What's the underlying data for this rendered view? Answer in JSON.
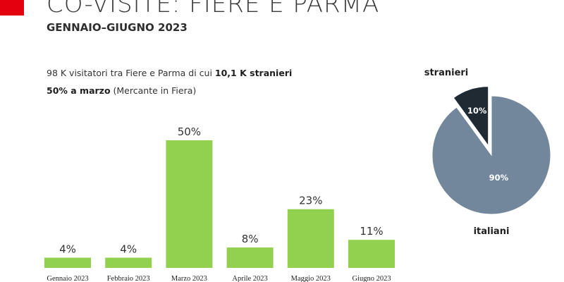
{
  "header": {
    "title": "CO-VISITE: FIERE E PARMA",
    "subtitle": "GENNAIO–GIUGNO 2023"
  },
  "info": {
    "line1_text": "98 K visitatori tra Fiere e Parma di cui ",
    "line1_bold": "10,1 K stranieri",
    "line2_bold": "50% a marzo",
    "line2_text": " (Mercante in Fiera)"
  },
  "colors": {
    "accent": "#e3000f",
    "bar": "#92d050",
    "pie_italiani": "#72879c",
    "pie_stranieri": "#1f2a33"
  },
  "chart_data": [
    {
      "type": "bar",
      "categories": [
        "Gennaio 2023",
        "Febbraio 2023",
        "Marzo 2023",
        "Aprile 2023",
        "Maggio 2023",
        "Giugno 2023"
      ],
      "values": [
        4,
        4,
        50,
        8,
        23,
        11
      ],
      "value_labels": [
        "4%",
        "4%",
        "50%",
        "8%",
        "23%",
        "11%"
      ],
      "ylim": [
        0,
        50
      ],
      "grid": false
    },
    {
      "type": "pie",
      "slices": [
        {
          "label": "italiani",
          "value": 90,
          "value_label": "90%"
        },
        {
          "label": "stranieri",
          "value": 10,
          "value_label": "10%",
          "exploded": true
        }
      ]
    }
  ]
}
